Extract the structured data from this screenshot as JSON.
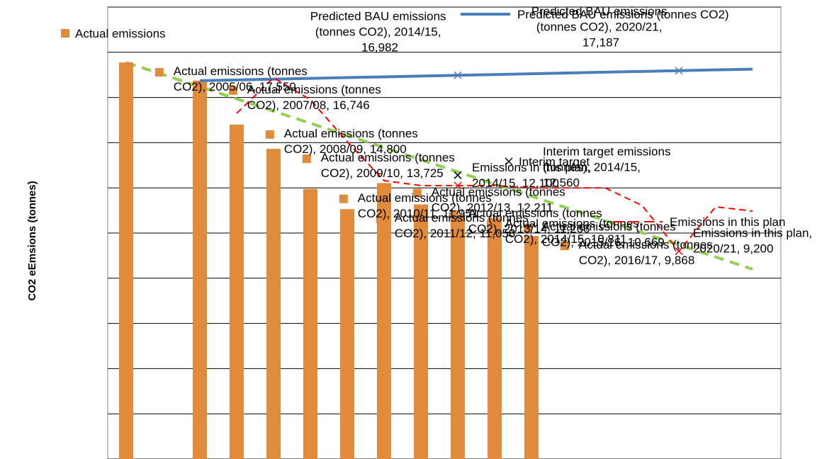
{
  "chart_data": {
    "type": "combo",
    "y_label": "CO2 eEmsions (tonnes)",
    "ylim": [
      0,
      20000
    ],
    "yticks": [
      0,
      2000,
      4000,
      6000,
      8000,
      10000,
      12000,
      14000,
      16000,
      18000,
      20000
    ],
    "grid": true,
    "tick_labels": false,
    "series": [
      {
        "name": "Actual emissions",
        "kind": "bar",
        "color": "#e08a3c",
        "values": [
          17550,
          null,
          16746,
          14800,
          13725,
          11951,
          11058,
          12211,
          11266,
          10811,
          10669,
          9868,
          null,
          null,
          null,
          null,
          null,
          null
        ],
        "value_labels": [
          "Actual emissions (tonnes CO2), 2005/06, 17,550",
          null,
          "Actual emissions (tonnes CO2), 2007/08, 16,746",
          "Actual emissions (tonnes CO2), 2008/09, 14,800",
          "Actual emissions (tonnes CO2), 2009/10, 13,725",
          "Actual emissions (tonnes CO2), 2010/11, 11,951",
          "Actual emissions (tonnes CO2), 2011/12, 11,058",
          "Actual emissions (tonnes CO2), 2012/13, 12,211",
          "Actual emissions (tonnes CO2), 2013/14, 11,266",
          "Actual emissions (tonnes CO2), 2014/15, 10,811",
          "Actual emissions (tonnes CO2), 2015/16, 10,669",
          "Actual emissions (tonnes CO2), 2016/17, 9,868",
          null,
          null,
          null,
          null,
          null,
          null
        ]
      },
      {
        "name": "Predicted BAU emissions (tonnes CO2)",
        "kind": "line",
        "color": "#4a7ebb",
        "dash": false,
        "values": [
          null,
          null,
          16743,
          16777,
          16811,
          16845,
          16879,
          16914,
          16948,
          16982,
          17016,
          17050,
          17084,
          17119,
          17153,
          17187,
          17221,
          17255
        ],
        "value_labels": [
          null,
          null,
          null,
          null,
          null,
          null,
          null,
          null,
          null,
          "Predicted BAU emissions (tonnes CO2), 2014/15, 16,982",
          null,
          null,
          null,
          null,
          null,
          "Predicted BAU emissions (tonnes CO2), 2020/21, 17,187",
          null,
          null
        ]
      },
      {
        "name": "Emissions in this plan",
        "kind": "line",
        "color": "#ff0000",
        "dash": true,
        "values": [
          null,
          null,
          null,
          15300,
          16870,
          15900,
          14040,
          12320,
          12100,
          12100,
          12100,
          12000,
          12000,
          12000,
          11220,
          9200,
          11160,
          10970
        ],
        "value_labels": [
          null,
          null,
          null,
          null,
          null,
          null,
          null,
          null,
          null,
          "Emissions in this plan, 2014/15, 12,100",
          null,
          null,
          null,
          null,
          null,
          "Emissions in this plan, 2020/21, 9,200",
          null,
          null
        ]
      },
      {
        "name": "Interim target",
        "kind": "marker",
        "color": "#000000",
        "values": [
          null,
          null,
          null,
          null,
          null,
          null,
          null,
          null,
          null,
          12560,
          null,
          null,
          null,
          null,
          null,
          null,
          null,
          null
        ],
        "value_labels": [
          null,
          null,
          null,
          null,
          null,
          null,
          null,
          null,
          null,
          "Interim target emissions (tonnes), 2014/15, 12,560",
          null,
          null,
          null,
          null,
          null,
          null,
          null,
          null
        ]
      }
    ],
    "trendline": {
      "color": "#92d050",
      "values": [
        17550,
        17012,
        16474,
        15936,
        15397,
        14859,
        14321,
        13783,
        13245,
        12706,
        12168,
        11630,
        11092,
        10554,
        10015,
        9477,
        8939,
        8400
      ]
    }
  }
}
